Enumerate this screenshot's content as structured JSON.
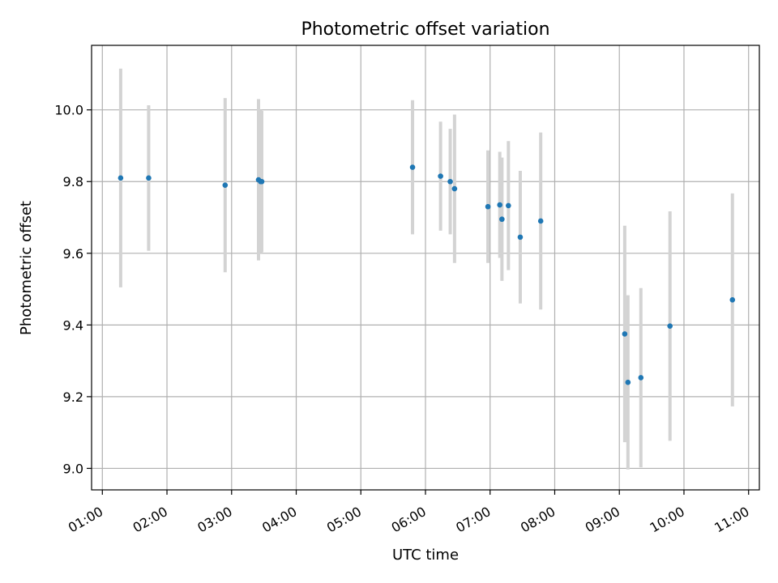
{
  "chart_data": {
    "type": "scatter",
    "title": "Photometric offset variation",
    "xlabel": "UTC time",
    "ylabel": "Photometric offset",
    "grid": true,
    "x_tick_labels": [
      "01:00",
      "02:00",
      "03:00",
      "04:00",
      "05:00",
      "06:00",
      "07:00",
      "08:00",
      "09:00",
      "10:00",
      "11:00"
    ],
    "y_tick_labels": [
      "9.0",
      "9.2",
      "9.4",
      "9.6",
      "9.8",
      "10.0"
    ],
    "xlim": [
      "00:50",
      "11:10"
    ],
    "ylim": [
      8.94,
      10.18
    ],
    "point_color": "#1f77b4",
    "errorbar_color": "#d3d3d3",
    "points": [
      {
        "x": "01:17",
        "y": 9.81,
        "ylow": 9.505,
        "yhigh": 10.115
      },
      {
        "x": "01:43",
        "y": 9.81,
        "ylow": 9.607,
        "yhigh": 10.013
      },
      {
        "x": "02:54",
        "y": 9.79,
        "ylow": 9.547,
        "yhigh": 10.033
      },
      {
        "x": "03:25",
        "y": 9.805,
        "ylow": 9.58,
        "yhigh": 10.03
      },
      {
        "x": "03:27",
        "y": 9.8,
        "ylow": 9.6,
        "yhigh": 10.0
      },
      {
        "x": "03:28",
        "y": 9.8,
        "ylow": 9.603,
        "yhigh": 9.997
      },
      {
        "x": "05:48",
        "y": 9.84,
        "ylow": 9.653,
        "yhigh": 10.027
      },
      {
        "x": "06:14",
        "y": 9.815,
        "ylow": 9.663,
        "yhigh": 9.967
      },
      {
        "x": "06:23",
        "y": 9.8,
        "ylow": 9.653,
        "yhigh": 9.947
      },
      {
        "x": "06:27",
        "y": 9.78,
        "ylow": 9.573,
        "yhigh": 9.987
      },
      {
        "x": "06:58",
        "y": 9.73,
        "ylow": 9.573,
        "yhigh": 9.887
      },
      {
        "x": "07:09",
        "y": 9.735,
        "ylow": 9.587,
        "yhigh": 9.883
      },
      {
        "x": "07:11",
        "y": 9.695,
        "ylow": 9.523,
        "yhigh": 9.867
      },
      {
        "x": "07:17",
        "y": 9.733,
        "ylow": 9.553,
        "yhigh": 9.913
      },
      {
        "x": "07:28",
        "y": 9.645,
        "ylow": 9.46,
        "yhigh": 9.83
      },
      {
        "x": "07:47",
        "y": 9.69,
        "ylow": 9.443,
        "yhigh": 9.937
      },
      {
        "x": "09:05",
        "y": 9.375,
        "ylow": 9.073,
        "yhigh": 9.677
      },
      {
        "x": "09:08",
        "y": 9.24,
        "ylow": 8.997,
        "yhigh": 9.483
      },
      {
        "x": "09:20",
        "y": 9.253,
        "ylow": 9.003,
        "yhigh": 9.503
      },
      {
        "x": "09:47",
        "y": 9.397,
        "ylow": 9.077,
        "yhigh": 9.717
      },
      {
        "x": "10:45",
        "y": 9.47,
        "ylow": 9.173,
        "yhigh": 9.767
      }
    ]
  }
}
